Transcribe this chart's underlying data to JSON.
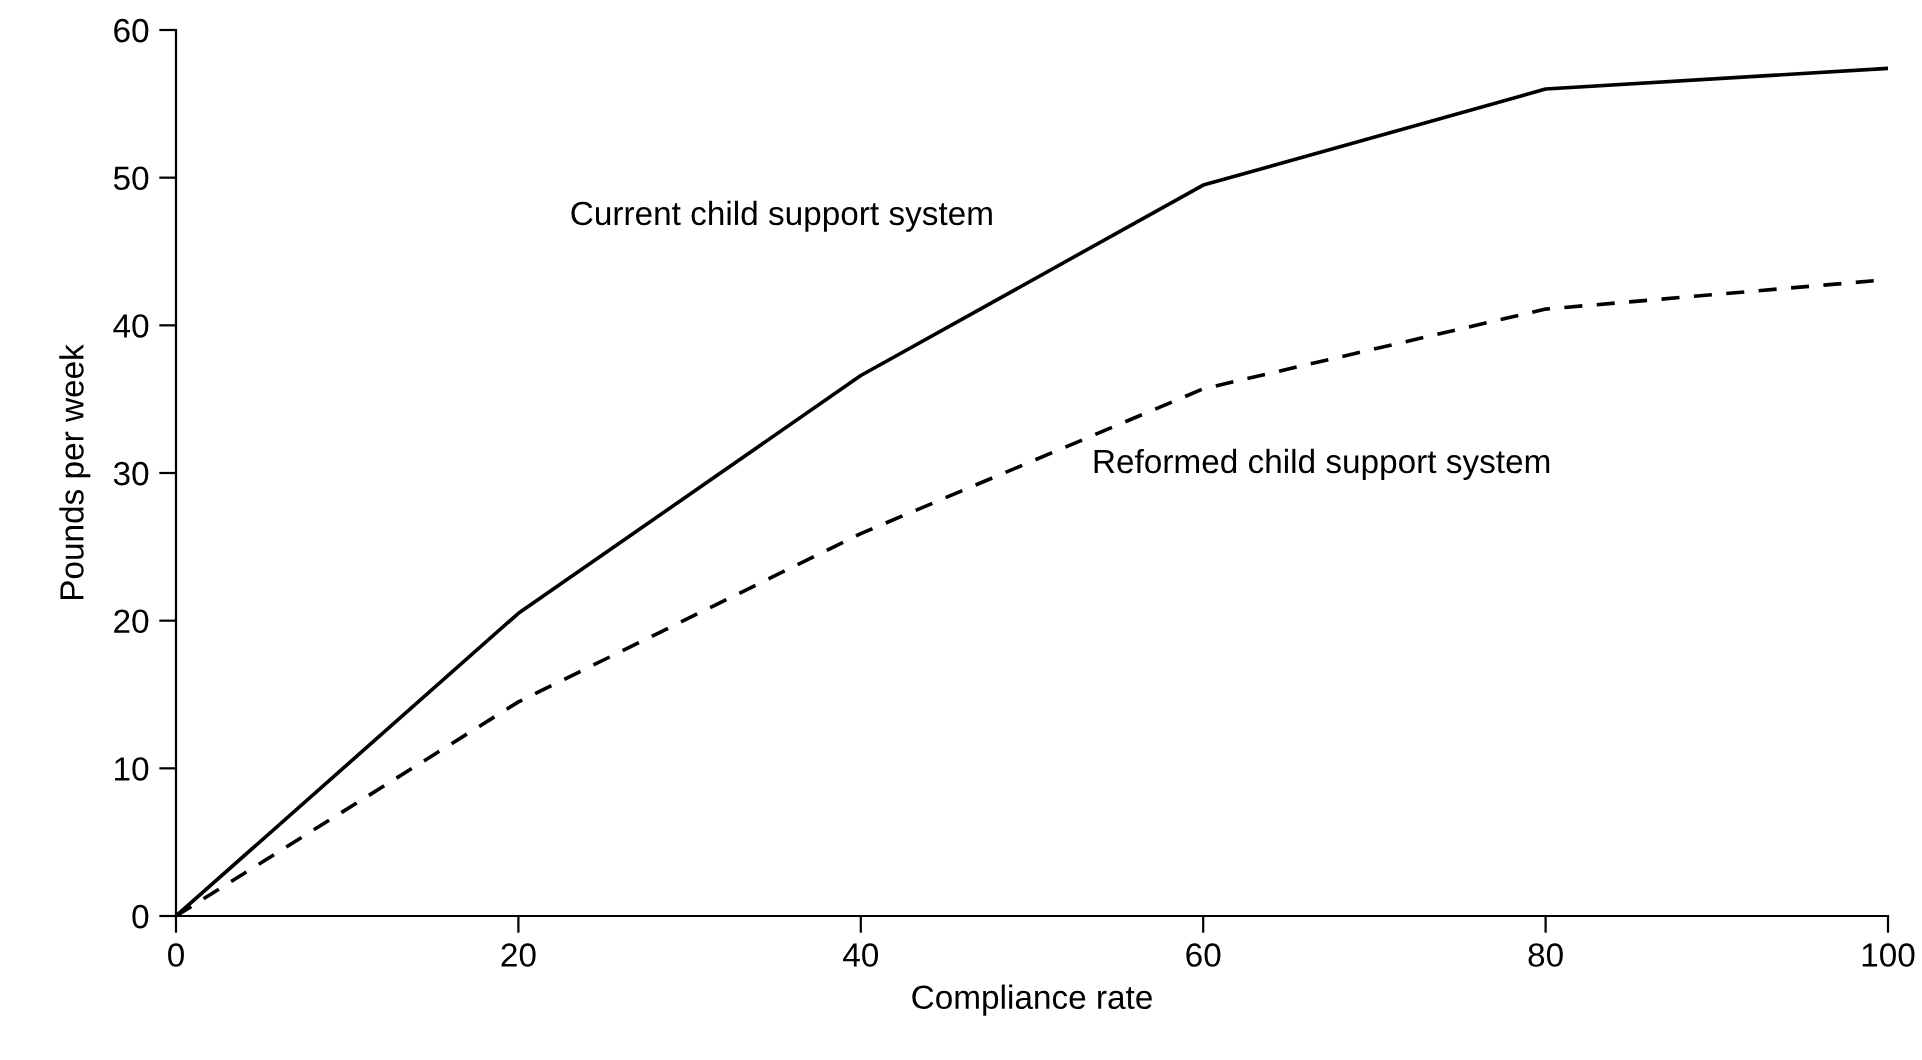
{
  "chart_data": {
    "type": "line",
    "xlabel": "Compliance rate",
    "ylabel": "Pounds per week",
    "x": [
      0,
      20,
      40,
      60,
      80,
      100
    ],
    "series": [
      {
        "name": "Current child support system",
        "color": "#000000",
        "line_style": "solid",
        "values": [
          0,
          20.5,
          36.6,
          49.5,
          56.0,
          57.4
        ]
      },
      {
        "name": "Reformed child support system",
        "color": "#000000",
        "line_style": "dashed",
        "values": [
          0,
          14.5,
          25.9,
          35.7,
          41.1,
          43.1
        ]
      }
    ],
    "xlim": [
      0,
      100
    ],
    "ylim": [
      0,
      60
    ],
    "xticks": [
      0,
      20,
      40,
      60,
      80,
      100
    ],
    "yticks": [
      0,
      10,
      20,
      30,
      40,
      50,
      60
    ],
    "grid": false,
    "legend": false
  }
}
